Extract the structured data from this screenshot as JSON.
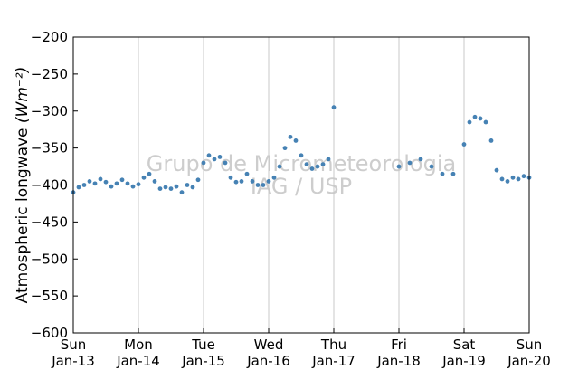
{
  "chart_data": {
    "type": "scatter",
    "ylabel": "Atmospheric longwave",
    "yunit": "(Wm⁻²)",
    "ylim": [
      -600,
      -200
    ],
    "yticks": [
      -200,
      -250,
      -300,
      -350,
      -400,
      -450,
      -500,
      -550,
      -600
    ],
    "xlim": [
      "2014-01-13",
      "2014-01-20"
    ],
    "xtick_labels": [
      {
        "day": "Sun",
        "date": "Jan-13"
      },
      {
        "day": "Mon",
        "date": "Jan-14"
      },
      {
        "day": "Tue",
        "date": "Jan-15"
      },
      {
        "day": "Wed",
        "date": "Jan-16"
      },
      {
        "day": "Thu",
        "date": "Jan-17"
      },
      {
        "day": "Fri",
        "date": "Jan-18"
      },
      {
        "day": "Sat",
        "date": "Jan-19"
      },
      {
        "day": "Sun",
        "date": "Jan-20"
      }
    ],
    "grid": "vertical",
    "marker_color": "#4682b4",
    "watermark": [
      "Grupo de Micrometeorologia",
      "IAG / USP"
    ],
    "series": [
      {
        "name": "",
        "points": [
          [
            "2014-01-13 00:00",
            -410
          ],
          [
            "2014-01-13 02:00",
            -403
          ],
          [
            "2014-01-13 04:00",
            -400
          ],
          [
            "2014-01-13 06:00",
            -395
          ],
          [
            "2014-01-13 08:00",
            -398
          ],
          [
            "2014-01-13 10:00",
            -392
          ],
          [
            "2014-01-13 12:00",
            -396
          ],
          [
            "2014-01-13 14:00",
            -402
          ],
          [
            "2014-01-13 16:00",
            -398
          ],
          [
            "2014-01-13 18:00",
            -393
          ],
          [
            "2014-01-13 20:00",
            -398
          ],
          [
            "2014-01-13 22:00",
            -402
          ],
          [
            "2014-01-14 00:00",
            -399
          ],
          [
            "2014-01-14 02:00",
            -390
          ],
          [
            "2014-01-14 04:00",
            -385
          ],
          [
            "2014-01-14 06:00",
            -395
          ],
          [
            "2014-01-14 08:00",
            -405
          ],
          [
            "2014-01-14 10:00",
            -403
          ],
          [
            "2014-01-14 12:00",
            -405
          ],
          [
            "2014-01-14 14:00",
            -402
          ],
          [
            "2014-01-14 16:00",
            -410
          ],
          [
            "2014-01-14 18:00",
            -400
          ],
          [
            "2014-01-14 20:00",
            -403
          ],
          [
            "2014-01-14 22:00",
            -393
          ],
          [
            "2014-01-15 00:00",
            -370
          ],
          [
            "2014-01-15 02:00",
            -360
          ],
          [
            "2014-01-15 04:00",
            -365
          ],
          [
            "2014-01-15 06:00",
            -362
          ],
          [
            "2014-01-15 08:00",
            -370
          ],
          [
            "2014-01-15 10:00",
            -390
          ],
          [
            "2014-01-15 12:00",
            -396
          ],
          [
            "2014-01-15 14:00",
            -395
          ],
          [
            "2014-01-15 16:00",
            -385
          ],
          [
            "2014-01-15 18:00",
            -395
          ],
          [
            "2014-01-15 20:00",
            -400
          ],
          [
            "2014-01-15 22:00",
            -400
          ],
          [
            "2014-01-16 00:00",
            -395
          ],
          [
            "2014-01-16 02:00",
            -390
          ],
          [
            "2014-01-16 04:00",
            -375
          ],
          [
            "2014-01-16 06:00",
            -350
          ],
          [
            "2014-01-16 08:00",
            -335
          ],
          [
            "2014-01-16 10:00",
            -340
          ],
          [
            "2014-01-16 12:00",
            -360
          ],
          [
            "2014-01-16 14:00",
            -372
          ],
          [
            "2014-01-16 16:00",
            -378
          ],
          [
            "2014-01-16 18:00",
            -375
          ],
          [
            "2014-01-16 20:00",
            -372
          ],
          [
            "2014-01-16 22:00",
            -365
          ],
          [
            "2014-01-17 00:00",
            -295
          ],
          [
            "2014-01-18 00:00",
            -375
          ],
          [
            "2014-01-18 04:00",
            -370
          ],
          [
            "2014-01-18 08:00",
            -365
          ],
          [
            "2014-01-18 12:00",
            -375
          ],
          [
            "2014-01-18 16:00",
            -385
          ],
          [
            "2014-01-18 20:00",
            -385
          ],
          [
            "2014-01-19 00:00",
            -345
          ],
          [
            "2014-01-19 02:00",
            -315
          ],
          [
            "2014-01-19 04:00",
            -308
          ],
          [
            "2014-01-19 06:00",
            -310
          ],
          [
            "2014-01-19 08:00",
            -315
          ],
          [
            "2014-01-19 10:00",
            -340
          ],
          [
            "2014-01-19 12:00",
            -380
          ],
          [
            "2014-01-19 14:00",
            -392
          ],
          [
            "2014-01-19 16:00",
            -395
          ],
          [
            "2014-01-19 18:00",
            -390
          ],
          [
            "2014-01-19 20:00",
            -392
          ],
          [
            "2014-01-19 22:00",
            -388
          ],
          [
            "2014-01-20 00:00",
            -390
          ]
        ]
      }
    ]
  }
}
